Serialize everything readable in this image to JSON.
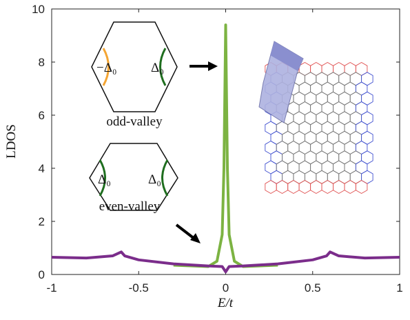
{
  "chart_data": {
    "type": "line",
    "xlabel": "E/t",
    "ylabel": "LDOS",
    "xlim": [
      -1,
      1
    ],
    "ylim": [
      0,
      10
    ],
    "xticks": [
      -1,
      -0.5,
      0,
      0.5,
      1
    ],
    "yticks": [
      0,
      2,
      4,
      6,
      8,
      10
    ],
    "series": [
      {
        "name": "odd-valley",
        "color": "#7cb342",
        "x": [
          -0.3,
          -0.1,
          -0.05,
          -0.02,
          -0.01,
          0,
          0.01,
          0.02,
          0.05,
          0.1,
          0.3
        ],
        "values": [
          0.35,
          0.3,
          0.5,
          1.5,
          4,
          9.4,
          4,
          1.5,
          0.5,
          0.3,
          0.35
        ]
      },
      {
        "name": "even-valley",
        "color": "#7b2d8b",
        "x": [
          -1,
          -0.8,
          -0.65,
          -0.6,
          -0.58,
          -0.5,
          -0.3,
          -0.1,
          -0.02,
          0,
          0.02,
          0.1,
          0.3,
          0.5,
          0.58,
          0.6,
          0.65,
          0.8,
          1
        ],
        "values": [
          0.65,
          0.62,
          0.7,
          0.85,
          0.7,
          0.55,
          0.4,
          0.32,
          0.3,
          0.1,
          0.3,
          0.32,
          0.4,
          0.55,
          0.7,
          0.85,
          0.7,
          0.62,
          0.65
        ]
      }
    ],
    "annotations": [
      "−Δ₀",
      "Δ₀",
      "Δ₀",
      "Δ₀"
    ]
  }
}
